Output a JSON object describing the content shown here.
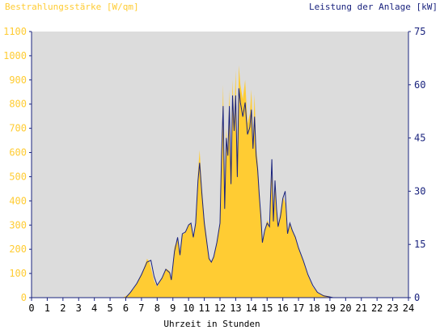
{
  "chart_data": {
    "type": "area",
    "left_axis_title": "Bestrahlungsstärke [W/qm]",
    "right_axis_title": "Leistung der Anlage [kW]",
    "xlabel": "Uhrzeit in Stunden",
    "x_range": [
      0,
      24
    ],
    "x_ticks": [
      "0",
      "1",
      "2",
      "3",
      "4",
      "5",
      "6",
      "7",
      "8",
      "9",
      "10",
      "11",
      "12",
      "13",
      "14",
      "15",
      "16",
      "17",
      "18",
      "19",
      "20",
      "21",
      "22",
      "23",
      "24"
    ],
    "y_left_range": [
      0,
      1100
    ],
    "y_left_ticks": [
      "0",
      "100",
      "200",
      "300",
      "400",
      "500",
      "600",
      "700",
      "800",
      "900",
      "1000",
      "1100"
    ],
    "y_right_range": [
      0,
      75
    ],
    "y_right_ticks": [
      "0",
      "15",
      "30",
      "45",
      "60",
      "75"
    ],
    "grid": false,
    "colors": {
      "plot_background": "#dcdcdc",
      "irradiance_fill": "#ffcc33",
      "left_axis_text": "#ffcc33",
      "power_line": "#1a237e",
      "right_axis_text": "#1a237e",
      "axis_line": "#1a237e",
      "xlabel_text": "#000000"
    },
    "series": [
      {
        "name": "Bestrahlungsstärke [W/qm]",
        "axis": "left",
        "kind": "area",
        "points": [
          [
            0,
            0
          ],
          [
            5.8,
            0
          ],
          [
            6.1,
            10
          ],
          [
            6.5,
            35
          ],
          [
            6.8,
            70
          ],
          [
            7.1,
            110
          ],
          [
            7.35,
            160
          ],
          [
            7.5,
            150
          ],
          [
            7.8,
            70
          ],
          [
            8.0,
            45
          ],
          [
            8.3,
            80
          ],
          [
            8.55,
            120
          ],
          [
            8.8,
            110
          ],
          [
            8.9,
            75
          ],
          [
            9.1,
            210
          ],
          [
            9.3,
            240
          ],
          [
            9.45,
            170
          ],
          [
            9.6,
            260
          ],
          [
            9.8,
            270
          ],
          [
            10.0,
            300
          ],
          [
            10.15,
            310
          ],
          [
            10.3,
            250
          ],
          [
            10.45,
            310
          ],
          [
            10.6,
            520
          ],
          [
            10.7,
            610
          ],
          [
            10.85,
            450
          ],
          [
            11.0,
            330
          ],
          [
            11.15,
            250
          ],
          [
            11.3,
            160
          ],
          [
            11.45,
            150
          ],
          [
            11.6,
            170
          ],
          [
            11.8,
            230
          ],
          [
            12.0,
            310
          ],
          [
            12.1,
            600
          ],
          [
            12.2,
            880
          ],
          [
            12.3,
            350
          ],
          [
            12.4,
            700
          ],
          [
            12.5,
            600
          ],
          [
            12.6,
            860
          ],
          [
            12.7,
            480
          ],
          [
            12.8,
            900
          ],
          [
            12.9,
            720
          ],
          [
            13.0,
            940
          ],
          [
            13.1,
            500
          ],
          [
            13.2,
            960
          ],
          [
            13.3,
            880
          ],
          [
            13.45,
            820
          ],
          [
            13.6,
            900
          ],
          [
            13.75,
            720
          ],
          [
            13.9,
            760
          ],
          [
            14.0,
            860
          ],
          [
            14.1,
            650
          ],
          [
            14.2,
            840
          ],
          [
            14.3,
            620
          ],
          [
            14.4,
            560
          ],
          [
            14.5,
            450
          ],
          [
            14.6,
            350
          ],
          [
            14.7,
            230
          ],
          [
            14.85,
            280
          ],
          [
            15.0,
            320
          ],
          [
            15.15,
            300
          ],
          [
            15.3,
            520
          ],
          [
            15.4,
            320
          ],
          [
            15.5,
            490
          ],
          [
            15.6,
            380
          ],
          [
            15.7,
            300
          ],
          [
            15.85,
            350
          ],
          [
            16.0,
            420
          ],
          [
            16.15,
            390
          ],
          [
            16.3,
            260
          ],
          [
            16.45,
            310
          ],
          [
            16.6,
            280
          ],
          [
            16.8,
            250
          ],
          [
            17.0,
            200
          ],
          [
            17.3,
            150
          ],
          [
            17.6,
            90
          ],
          [
            17.9,
            45
          ],
          [
            18.2,
            20
          ],
          [
            18.6,
            10
          ],
          [
            19.0,
            5
          ],
          [
            19.2,
            0
          ],
          [
            24,
            0
          ]
        ]
      },
      {
        "name": "Leistung der Anlage [kW]",
        "axis": "right",
        "kind": "line",
        "points": [
          [
            0,
            0
          ],
          [
            6.0,
            0
          ],
          [
            6.3,
            1.5
          ],
          [
            6.7,
            4
          ],
          [
            7.0,
            6.5
          ],
          [
            7.35,
            10
          ],
          [
            7.6,
            10.5
          ],
          [
            7.8,
            6
          ],
          [
            8.0,
            3.5
          ],
          [
            8.3,
            5.5
          ],
          [
            8.55,
            8
          ],
          [
            8.8,
            7
          ],
          [
            8.9,
            5
          ],
          [
            9.1,
            13
          ],
          [
            9.3,
            17
          ],
          [
            9.45,
            12
          ],
          [
            9.6,
            18
          ],
          [
            9.8,
            18.5
          ],
          [
            10.0,
            20.5
          ],
          [
            10.15,
            21
          ],
          [
            10.3,
            17
          ],
          [
            10.45,
            21
          ],
          [
            10.6,
            33
          ],
          [
            10.7,
            38
          ],
          [
            10.85,
            29
          ],
          [
            11.0,
            21
          ],
          [
            11.15,
            16
          ],
          [
            11.3,
            11
          ],
          [
            11.45,
            10
          ],
          [
            11.6,
            11.5
          ],
          [
            11.8,
            15.5
          ],
          [
            12.0,
            21
          ],
          [
            12.1,
            40
          ],
          [
            12.2,
            54
          ],
          [
            12.3,
            25
          ],
          [
            12.4,
            45
          ],
          [
            12.5,
            40
          ],
          [
            12.6,
            54
          ],
          [
            12.7,
            32
          ],
          [
            12.8,
            57
          ],
          [
            12.9,
            47
          ],
          [
            13.0,
            57
          ],
          [
            13.1,
            34
          ],
          [
            13.2,
            59
          ],
          [
            13.3,
            55
          ],
          [
            13.45,
            51
          ],
          [
            13.6,
            55
          ],
          [
            13.75,
            46
          ],
          [
            13.9,
            48
          ],
          [
            14.0,
            53
          ],
          [
            14.1,
            42
          ],
          [
            14.2,
            51
          ],
          [
            14.3,
            40
          ],
          [
            14.4,
            36
          ],
          [
            14.5,
            29
          ],
          [
            14.6,
            23
          ],
          [
            14.7,
            15.5
          ],
          [
            14.85,
            19
          ],
          [
            15.0,
            21
          ],
          [
            15.15,
            20
          ],
          [
            15.3,
            39
          ],
          [
            15.4,
            21.5
          ],
          [
            15.5,
            33
          ],
          [
            15.6,
            25
          ],
          [
            15.7,
            20
          ],
          [
            15.85,
            23
          ],
          [
            16.0,
            28
          ],
          [
            16.15,
            30
          ],
          [
            16.3,
            18
          ],
          [
            16.45,
            21
          ],
          [
            16.6,
            19
          ],
          [
            16.8,
            17
          ],
          [
            17.0,
            14
          ],
          [
            17.3,
            10.5
          ],
          [
            17.6,
            6.5
          ],
          [
            17.9,
            3.5
          ],
          [
            18.2,
            1.5
          ],
          [
            18.6,
            0.5
          ],
          [
            19.0,
            0.2
          ],
          [
            19.2,
            0
          ],
          [
            24,
            0
          ]
        ]
      }
    ]
  }
}
